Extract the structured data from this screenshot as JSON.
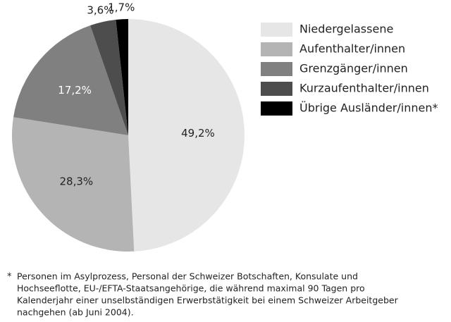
{
  "chart_data": {
    "type": "pie",
    "categories": [
      "Niedergelassene",
      "Aufenthalter/innen",
      "Grenzgänger/innen",
      "Kurzaufenthalter/innen",
      "Übrige Ausländer/innen*"
    ],
    "values": [
      49.2,
      28.3,
      17.2,
      3.6,
      1.7
    ],
    "value_labels": [
      "49,2%",
      "28,3%",
      "17,2%",
      "3,6%",
      "1,7%"
    ],
    "colors": [
      "#e6e6e6",
      "#b4b4b4",
      "#808080",
      "#4d4d4d",
      "#000000"
    ],
    "legend": "right",
    "footnote": {
      "marker": "*",
      "lines": [
        "Personen im Asylprozess, Personal der Schweizer Botschaften, Konsulate und",
        "Hochseeflotte, EU-/EFTA-Staatsangehörige, die während maximal 90 Tagen pro",
        "Kalenderjahr einer unselbständigen Erwerbstätigkeit bei einem Schweizer Arbeitgeber",
        "nachgehen (ab Juni 2004)."
      ]
    }
  }
}
